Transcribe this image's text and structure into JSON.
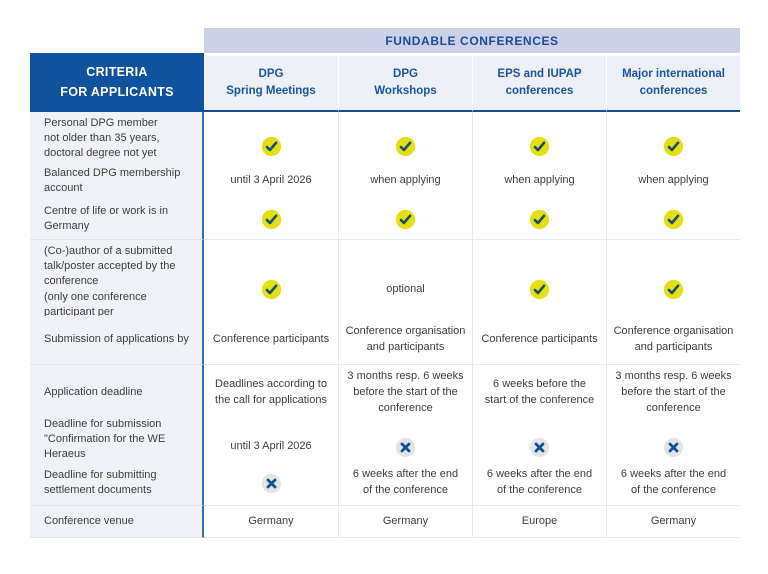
{
  "header": {
    "band_title": "FUNDABLE CONFERENCES",
    "criteria_title": "CRITERIA\nFOR APPLICANTS",
    "columns": [
      {
        "label": "DPG\nSpring Meetings"
      },
      {
        "label": "DPG\nWorkshops"
      },
      {
        "label": "EPS and IUPAP\nconferences"
      },
      {
        "label": "Major international\nconferences"
      }
    ]
  },
  "colors": {
    "band_bg": "#ccd1e8",
    "band_text": "#1b4c97",
    "criteria_header_bg": "#0f529e",
    "column_header_bg": "#eef0f7",
    "column_header_text": "#1b55a0",
    "criteria_column_bg": "#f0f2f8",
    "body_text": "#3d3d3d",
    "blue_divider": "#2f6cb3",
    "check_circle": "#e5de10",
    "check_mark": "#174f72",
    "cross_circle": "#e4e4e4",
    "cross_mark": "#10509c"
  },
  "icons": {
    "check": "check-icon",
    "cross": "cross-icon"
  },
  "table": {
    "rows": [
      {
        "criteria": "Personal DPG member\nnot older than 35 years,\ndoctoral degree not yet completed",
        "height": 50,
        "cells": [
          {
            "icon": "check"
          },
          {
            "icon": "check"
          },
          {
            "icon": "check"
          },
          {
            "icon": "check"
          }
        ]
      },
      {
        "criteria": "Balanced DPG membership account",
        "height": 37,
        "cells": [
          {
            "text": "until 3 April 2026"
          },
          {
            "text": "when applying"
          },
          {
            "text": "when applying"
          },
          {
            "text": "when applying"
          }
        ]
      },
      {
        "criteria": "Centre of life or work is in Germany",
        "height": 41,
        "cells": [
          {
            "icon": "check"
          },
          {
            "icon": "check"
          },
          {
            "icon": "check"
          },
          {
            "icon": "check"
          }
        ]
      },
      {
        "criteria": "(Co-)author of a submitted\ntalk/poster accepted by the conference\n(only one conference participant per\ncontribution can be funded)",
        "height": 76,
        "cells": [
          {
            "icon": "check"
          },
          {
            "text": "optional"
          },
          {
            "icon": "check"
          },
          {
            "icon": "check"
          }
        ]
      },
      {
        "criteria": "Submission of applications by",
        "height": 49,
        "cells": [
          {
            "text": "Conference participants"
          },
          {
            "text": "Conference organisation\nand participants"
          },
          {
            "text": "Conference participants"
          },
          {
            "text": "Conference organisation\nand participants"
          }
        ]
      },
      {
        "criteria": "Application deadline",
        "height": 48,
        "cells": [
          {
            "text": "Deadlines according to\nthe call for applications"
          },
          {
            "text": "3 months resp. 6 weeks\nbefore the start of the\nconference"
          },
          {
            "text": "6 weeks before the\nstart of the conference"
          },
          {
            "text": "3 months resp. 6 weeks\nbefore the start of the\nconference"
          }
        ]
      },
      {
        "criteria": "Deadline for submission\n\"Confirmation for the WE Heraeus\nCommunication Programme\"",
        "height": 48,
        "cells": [
          {
            "text": "until 3 April 2026"
          },
          {
            "icon": "cross"
          },
          {
            "icon": "cross"
          },
          {
            "icon": "cross"
          }
        ]
      },
      {
        "criteria": "Deadline for submitting\nsettlement documents",
        "height": 45,
        "cells": [
          {
            "icon": "cross"
          },
          {
            "text": "6 weeks after the end\nof the conference"
          },
          {
            "text": "6 weeks after the end\nof the conference"
          },
          {
            "text": "6 weeks after the end\nof the conference"
          }
        ]
      },
      {
        "criteria": "Conference venue",
        "height": 32,
        "cells": [
          {
            "text": "Germany"
          },
          {
            "text": "Germany"
          },
          {
            "text": "Europe"
          },
          {
            "text": "Germany"
          }
        ]
      }
    ]
  }
}
